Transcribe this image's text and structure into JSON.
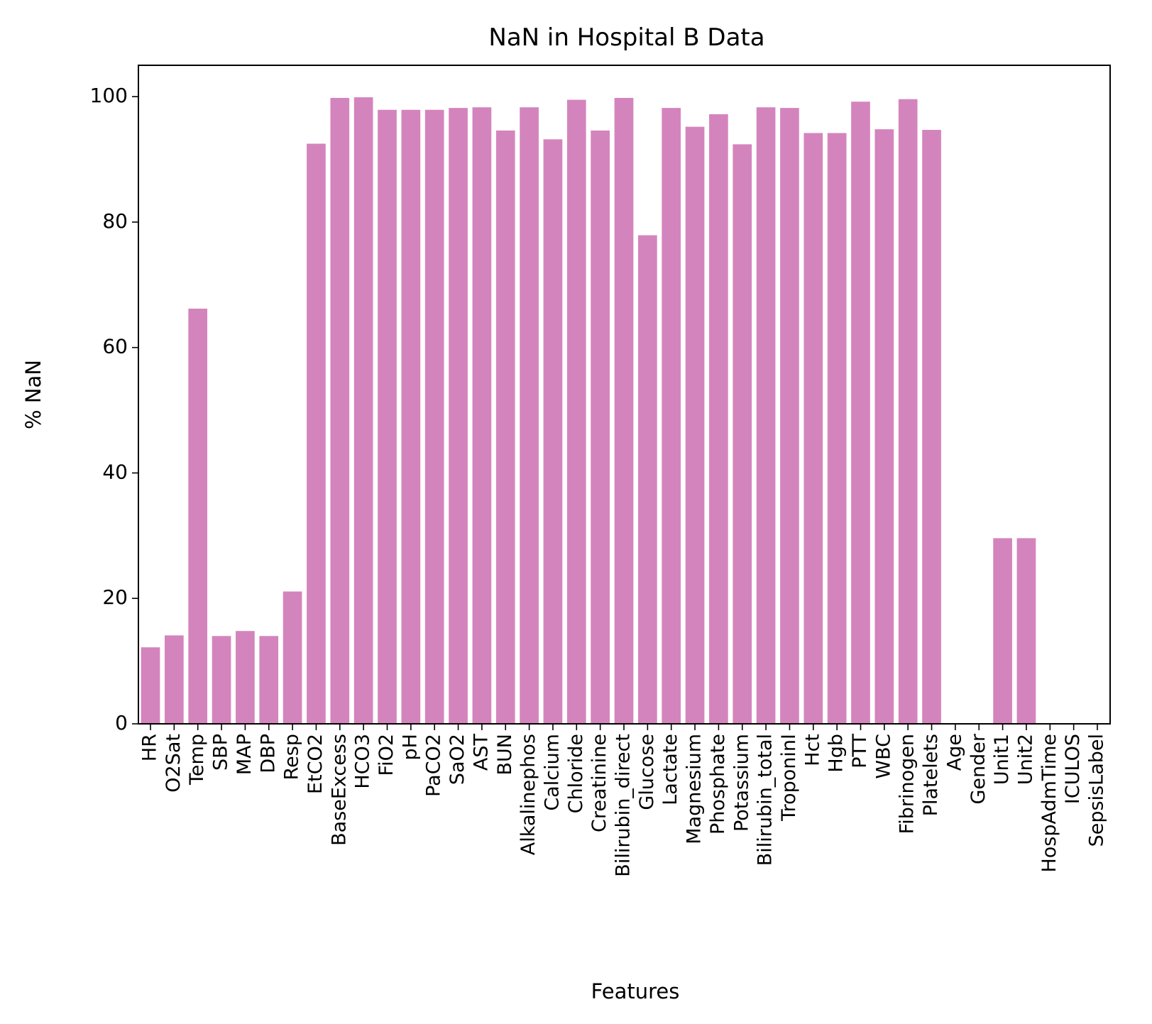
{
  "chart_data": {
    "type": "bar",
    "title": "NaN in Hospital B Data",
    "xlabel": "Features",
    "ylabel": "% NaN",
    "ylim": [
      0,
      105
    ],
    "yticks": [
      0,
      20,
      40,
      60,
      80,
      100
    ],
    "grid": false,
    "bar_color": "#d484bd",
    "categories": [
      "HR",
      "O2Sat",
      "Temp",
      "SBP",
      "MAP",
      "DBP",
      "Resp",
      "EtCO2",
      "BaseExcess",
      "HCO3",
      "FiO2",
      "pH",
      "PaCO2",
      "SaO2",
      "AST",
      "BUN",
      "Alkalinephos",
      "Calcium",
      "Chloride",
      "Creatinine",
      "Bilirubin_direct",
      "Glucose",
      "Lactate",
      "Magnesium",
      "Phosphate",
      "Potassium",
      "Bilirubin_total",
      "TroponinI",
      "Hct",
      "Hgb",
      "PTT",
      "WBC",
      "Fibrinogen",
      "Platelets",
      "Age",
      "Gender",
      "Unit1",
      "Unit2",
      "HospAdmTime",
      "ICULOS",
      "SepsisLabel"
    ],
    "values": [
      12.2,
      14.1,
      66.2,
      14.0,
      14.8,
      14.0,
      21.1,
      92.5,
      99.8,
      99.9,
      97.9,
      97.9,
      97.9,
      98.2,
      98.3,
      94.6,
      98.3,
      93.2,
      99.5,
      94.6,
      99.8,
      77.9,
      98.2,
      95.2,
      97.2,
      92.4,
      98.3,
      98.2,
      94.2,
      94.2,
      99.2,
      94.8,
      99.6,
      94.7,
      0,
      0,
      29.6,
      29.6,
      0,
      0,
      0
    ]
  }
}
